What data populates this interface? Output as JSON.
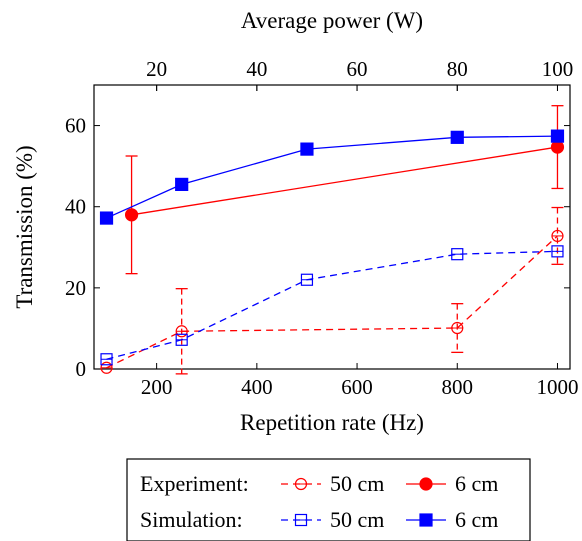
{
  "chart_data": {
    "type": "line",
    "xlabel": "Repetition rate (Hz)",
    "ylabel": "Transmission (%)",
    "x2label": "Average power (W)",
    "xlim": [
      75,
      1025
    ],
    "ylim": [
      0,
      70
    ],
    "x2lim": [
      7.5,
      102.5
    ],
    "xticks": [
      200,
      400,
      600,
      800,
      1000
    ],
    "yticks": [
      0,
      20,
      40,
      60
    ],
    "x2ticks": [
      20,
      40,
      60,
      80,
      100
    ],
    "grid": false,
    "legend_position": "bottom-center",
    "legend_rows": [
      {
        "label": "Experiment:",
        "entries": [
          {
            "series": 0,
            "text": "50 cm"
          },
          {
            "series": 1,
            "text": "6 cm"
          }
        ]
      },
      {
        "label": "Simulation:",
        "entries": [
          {
            "series": 2,
            "text": "50 cm"
          },
          {
            "series": 3,
            "text": "6 cm"
          }
        ]
      }
    ],
    "series": [
      {
        "group": "Experiment",
        "color": "#ff0000",
        "dashed": true,
        "marker": "circle-open",
        "points": [
          {
            "x": 100,
            "y": 0.3,
            "err": 0
          },
          {
            "x": 250,
            "y": 9.3,
            "err": 10.5
          },
          {
            "x": 800,
            "y": 10.1,
            "err": 6
          },
          {
            "x": 1000,
            "y": 32.8,
            "err": 7
          }
        ]
      },
      {
        "group": "Experiment",
        "color": "#ff0000",
        "dashed": false,
        "marker": "circle-filled",
        "points": [
          {
            "x": 150,
            "y": 38,
            "err": 14.5
          },
          {
            "x": 1000,
            "y": 54.7,
            "err": 10.2
          }
        ]
      },
      {
        "group": "Simulation",
        "color": "#0000ff",
        "dashed": true,
        "marker": "square-open",
        "points": [
          {
            "x": 100,
            "y": 2.4
          },
          {
            "x": 250,
            "y": 7.2
          },
          {
            "x": 500,
            "y": 22
          },
          {
            "x": 800,
            "y": 28.3
          },
          {
            "x": 1000,
            "y": 29
          }
        ]
      },
      {
        "group": "Simulation",
        "color": "#0000ff",
        "dashed": false,
        "marker": "square-filled",
        "points": [
          {
            "x": 100,
            "y": 37.2
          },
          {
            "x": 250,
            "y": 45.5
          },
          {
            "x": 500,
            "y": 54.2
          },
          {
            "x": 800,
            "y": 57.1
          },
          {
            "x": 1000,
            "y": 57.4
          }
        ]
      }
    ]
  }
}
